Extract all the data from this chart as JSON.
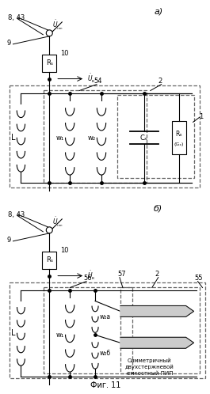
{
  "title_a": "а)",
  "title_b": "б)",
  "fig_label": "Фиг. 11",
  "bg_color": "#ffffff",
  "line_color": "#000000",
  "dashed_color": "#666666",
  "text_color": "#000000",
  "labels_a": {
    "843": "8, 43",
    "9": "9",
    "Rs": "Rₛ",
    "10": "10",
    "54": "54",
    "2": "2",
    "1": "1",
    "L": "L",
    "w1": "w₁",
    "w2": "w₂",
    "Cx": "Cₓ",
    "Rx": "Rₓ",
    "Gx": "(Gₓ)"
  },
  "labels_b": {
    "843": "8, 43",
    "9": "9",
    "Rs": "Rₛ",
    "10": "10",
    "56": "56",
    "57": "57",
    "2": "2",
    "55": "55",
    "L": "L",
    "w1": "w₁",
    "w2a": "w₂а",
    "w2b": "w₂б",
    "pip_text": "Симметричный\nдвухстержневой\nемкостный ПИП"
  }
}
